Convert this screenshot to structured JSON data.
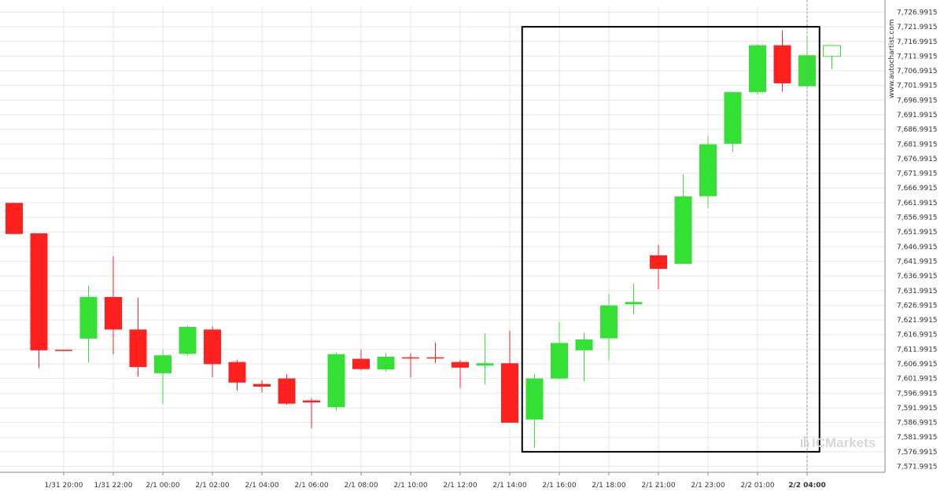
{
  "watermark": {
    "text": "www.autochartist.com"
  },
  "logo": {
    "text": "ICMarkets"
  },
  "colors": {
    "up": "#33e033",
    "down": "#ff2020",
    "grid": "#e6e6e6",
    "frame": "#000000",
    "current_marker": "#999999"
  },
  "chart_data": {
    "type": "candlestick",
    "ylim": [
      7569.9915,
      7728.9915
    ],
    "y_ticks": [
      "7,726.9915",
      "7,721.9915",
      "7,716.9915",
      "7,711.9915",
      "7,706.9915",
      "7,701.9915",
      "7,696.9915",
      "7,691.9915",
      "7,686.9915",
      "7,681.9915",
      "7,676.9915",
      "7,671.9915",
      "7,666.9915",
      "7,661.9915",
      "7,656.9915",
      "7,651.9915",
      "7,646.9915",
      "7,641.9915",
      "7,636.9915",
      "7,631.9915",
      "7,626.9915",
      "7,621.9915",
      "7,616.9915",
      "7,611.9915",
      "7,606.9915",
      "7,601.9915",
      "7,596.9915",
      "7,591.9915",
      "7,586.9915",
      "7,581.9915",
      "7,576.9915",
      "7,571.9915"
    ],
    "x_labels": [
      {
        "label": "1/31 20:00",
        "at": 2
      },
      {
        "label": "1/31 22:00",
        "at": 4
      },
      {
        "label": "2/1 00:00",
        "at": 6
      },
      {
        "label": "2/1 02:00",
        "at": 8
      },
      {
        "label": "2/1 04:00",
        "at": 10
      },
      {
        "label": "2/1 06:00",
        "at": 12
      },
      {
        "label": "2/1 08:00",
        "at": 14
      },
      {
        "label": "2/1 10:00",
        "at": 16
      },
      {
        "label": "2/1 12:00",
        "at": 18
      },
      {
        "label": "2/1 14:00",
        "at": 20
      },
      {
        "label": "2/1 16:00",
        "at": 22
      },
      {
        "label": "2/1 18:00",
        "at": 24
      },
      {
        "label": "2/1 21:00",
        "at": 26
      },
      {
        "label": "2/1 23:00",
        "at": 28
      },
      {
        "label": "2/2 01:00",
        "at": 30
      },
      {
        "label": "2/2 04:00",
        "at": 32,
        "bold": true
      }
    ],
    "candles": [
      {
        "o": 7661.9,
        "h": 7661.9,
        "l": 7651.3,
        "c": 7651.3
      },
      {
        "o": 7651.5,
        "h": 7651.5,
        "l": 7605.5,
        "c": 7611.6
      },
      {
        "o": 7611.8,
        "h": 7611.8,
        "l": 7611.4,
        "c": 7611.6
      },
      {
        "o": 7615.6,
        "h": 7633.7,
        "l": 7607.5,
        "c": 7629.8
      },
      {
        "o": 7629.8,
        "h": 7643.7,
        "l": 7610.2,
        "c": 7618.7
      },
      {
        "o": 7618.7,
        "h": 7629.6,
        "l": 7602.6,
        "c": 7605.9
      },
      {
        "o": 7603.8,
        "h": 7611.9,
        "l": 7593.2,
        "c": 7609.9
      },
      {
        "o": 7610.4,
        "h": 7620.0,
        "l": 7609.9,
        "c": 7619.6
      },
      {
        "o": 7618.7,
        "h": 7619.8,
        "l": 7602.4,
        "c": 7606.9
      },
      {
        "o": 7607.6,
        "h": 7608.3,
        "l": 7597.8,
        "c": 7600.6
      },
      {
        "o": 7600.1,
        "h": 7601.4,
        "l": 7597.2,
        "c": 7599.2
      },
      {
        "o": 7602.0,
        "h": 7603.5,
        "l": 7593.0,
        "c": 7593.4
      },
      {
        "o": 7594.5,
        "h": 7595.3,
        "l": 7585.0,
        "c": 7593.8
      },
      {
        "o": 7592.2,
        "h": 7610.8,
        "l": 7591.0,
        "c": 7610.3
      },
      {
        "o": 7608.7,
        "h": 7611.9,
        "l": 7604.8,
        "c": 7605.2
      },
      {
        "o": 7605.1,
        "h": 7610.7,
        "l": 7604.3,
        "c": 7609.4
      },
      {
        "o": 7609.2,
        "h": 7610.6,
        "l": 7602.3,
        "c": 7609.0
      },
      {
        "o": 7609.2,
        "h": 7614.3,
        "l": 7607.3,
        "c": 7609.0
      },
      {
        "o": 7607.6,
        "h": 7608.3,
        "l": 7598.8,
        "c": 7605.7
      },
      {
        "o": 7606.4,
        "h": 7617.4,
        "l": 7600.0,
        "c": 7607.2
      },
      {
        "o": 7607.2,
        "h": 7618.3,
        "l": 7586.9,
        "c": 7586.9
      },
      {
        "o": 7588.0,
        "h": 7603.6,
        "l": 7578.3,
        "c": 7602.0
      },
      {
        "o": 7602.0,
        "h": 7621.2,
        "l": 7601.7,
        "c": 7614.1
      },
      {
        "o": 7611.6,
        "h": 7617.7,
        "l": 7601.0,
        "c": 7615.3
      },
      {
        "o": 7615.7,
        "h": 7630.8,
        "l": 7608.2,
        "c": 7626.9
      },
      {
        "o": 7627.3,
        "h": 7634.3,
        "l": 7623.8,
        "c": 7628.1
      },
      {
        "o": 7644.0,
        "h": 7647.6,
        "l": 7632.5,
        "c": 7639.4
      },
      {
        "o": 7641.1,
        "h": 7671.7,
        "l": 7641.1,
        "c": 7664.1
      },
      {
        "o": 7664.2,
        "h": 7684.6,
        "l": 7660.1,
        "c": 7681.9
      },
      {
        "o": 7682.1,
        "h": 7699.7,
        "l": 7679.3,
        "c": 7699.7
      },
      {
        "o": 7699.7,
        "h": 7716.1,
        "l": 7698.9,
        "c": 7715.7
      },
      {
        "o": 7715.7,
        "h": 7720.7,
        "l": 7699.8,
        "c": 7702.7
      },
      {
        "o": 7701.7,
        "h": 7718.7,
        "l": 7701.2,
        "c": 7712.3
      },
      {
        "o": 7711.9,
        "h": 7715.7,
        "l": 7707.5,
        "c": 7715.6,
        "hollow": true
      }
    ],
    "highlight": {
      "from_index": 20.5,
      "to_index": 32.5,
      "low": 7576.9915,
      "high": 7721.9915
    },
    "current_index": 32
  }
}
